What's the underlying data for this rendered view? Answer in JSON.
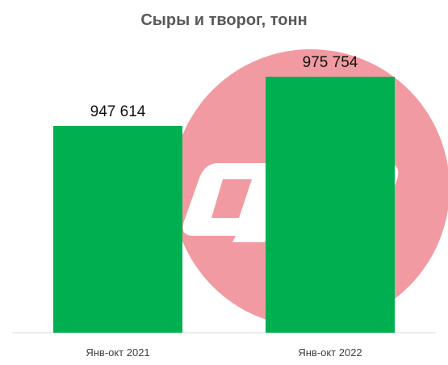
{
  "chart_data": {
    "type": "bar",
    "title": "Сыры и творог, тонн",
    "categories": [
      "Янв-окт 2021",
      "Янв-окт 2022"
    ],
    "values": [
      947614,
      975754
    ],
    "data_labels": [
      "947 614",
      "975 754"
    ],
    "bar_color": "#00b050",
    "grid": false,
    "legend": "none"
  },
  "watermark": {
    "text": "dp",
    "circle_color": "#f29aa1",
    "letter_color": "#ffffff"
  }
}
